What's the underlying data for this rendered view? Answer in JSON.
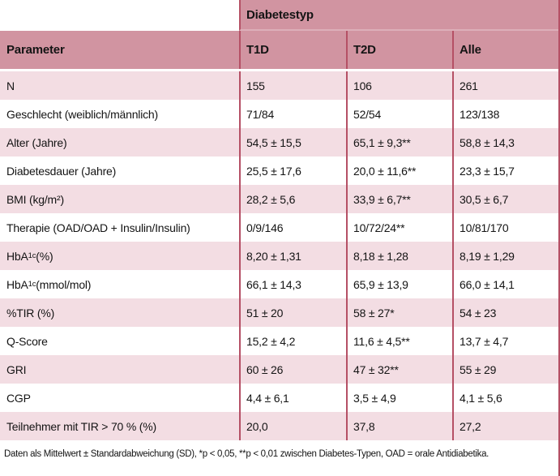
{
  "header": {
    "group_label": "Diabetestyp",
    "param_label": "Parameter",
    "col_labels": [
      "T1D",
      "T2D",
      "Alle"
    ]
  },
  "table": {
    "rows": [
      {
        "param": "N",
        "t1d": "155",
        "t2d": "106",
        "alle": "261"
      },
      {
        "param": "Geschlecht (weiblich/männlich)",
        "t1d": "71/84",
        "t2d": "52/54",
        "alle": "123/138"
      },
      {
        "param": "Alter (Jahre)",
        "t1d": "54,5 ± 15,5",
        "t2d": "65,1 ± 9,3**",
        "alle": "58,8 ± 14,3"
      },
      {
        "param": "Diabetesdauer (Jahre)",
        "t1d": "25,5 ± 17,6",
        "t2d": "20,0 ± 11,6**",
        "alle": "23,3 ± 15,7"
      },
      {
        "param": "BMI (kg/m²)",
        "t1d": "28,2 ± 5,6",
        "t2d": "33,9 ± 6,7**",
        "alle": "30,5 ± 6,7"
      },
      {
        "param": "Therapie (OAD/OAD + Insulin/Insulin)",
        "t1d": "0/9/146",
        "t2d": "10/72/24**",
        "alle": "10/81/170"
      },
      {
        "param_pre": "HbA",
        "param_sub": "1c",
        "param_post": " (%)",
        "t1d": "8,20 ± 1,31",
        "t2d": "8,18 ± 1,28",
        "alle": "8,19 ± 1,29"
      },
      {
        "param_pre": "HbA",
        "param_sub": "1c",
        "param_post": " (mmol/mol)",
        "t1d": "66,1 ± 14,3",
        "t2d": "65,9 ± 13,9",
        "alle": "66,0 ± 14,1"
      },
      {
        "param": "%TIR (%)",
        "t1d": "51 ± 20",
        "t2d": "58 ± 27*",
        "alle": "54 ± 23"
      },
      {
        "param": "Q-Score",
        "t1d": "15,2 ± 4,2",
        "t2d": "11,6 ± 4,5**",
        "alle": "13,7 ± 4,7"
      },
      {
        "param": "GRI",
        "t1d": "60 ± 26",
        "t2d": "47 ± 32**",
        "alle": "55 ± 29"
      },
      {
        "param": "CGP",
        "t1d": "4,4 ± 6,1",
        "t2d": "3,5 ± 4,9",
        "alle": "4,1 ± 5,6"
      },
      {
        "param": "Teilnehmer mit TIR > 70 % (%)",
        "t1d": "20,0",
        "t2d": "37,8",
        "alle": "27,2"
      }
    ]
  },
  "footnote": {
    "text": "Daten als Mittelwert ± Standardabweichung (SD), *p < 0,05, **p < 0,01 zwischen Diabetes-Typen, OAD = orale Antidiabetika."
  },
  "colors": {
    "header_band": "#d194a1",
    "row_alt_pink": "#f3dde3",
    "divider_line": "#b55065",
    "band_separator": "#ddafb9"
  }
}
